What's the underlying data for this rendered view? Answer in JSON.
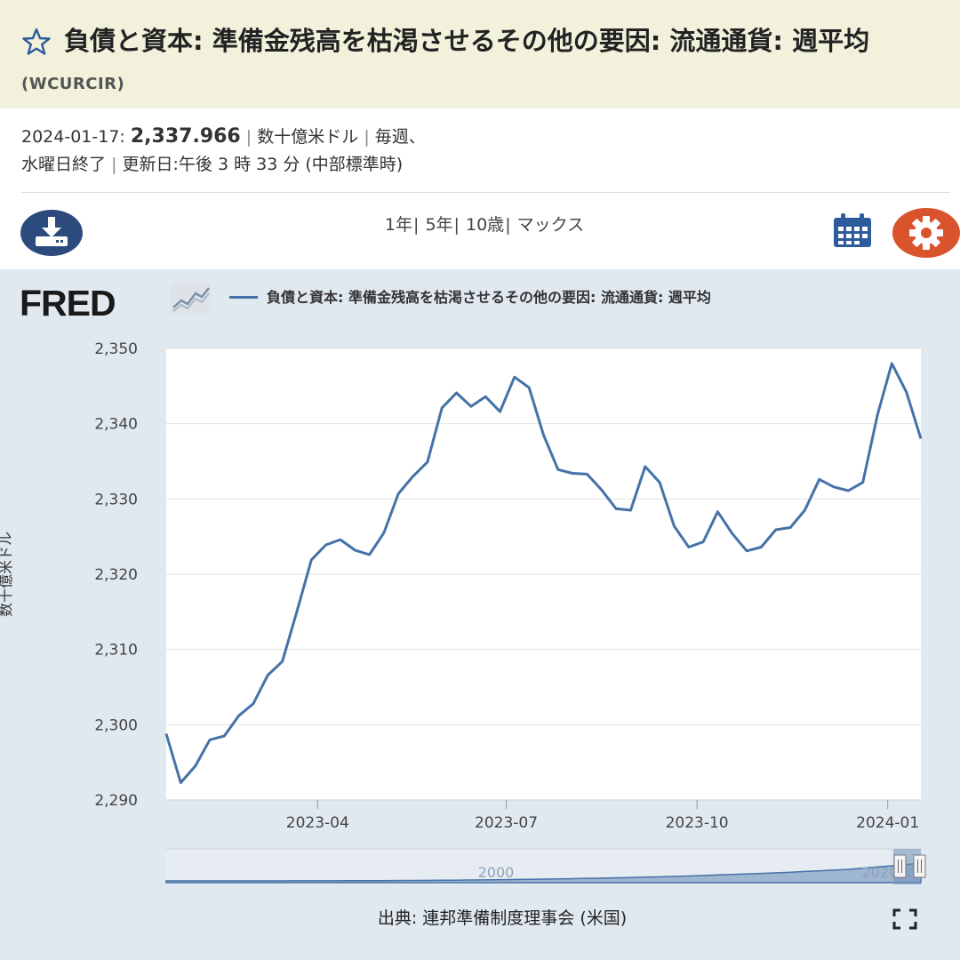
{
  "header": {
    "title": "負債と資本: 準備金残高を枯渇させるその他の要因: 流通通貨: 週平均",
    "series_id": "(WCURCIR)"
  },
  "meta": {
    "date": "2024-01-17:",
    "value": "2,337.966",
    "units": "数十億米ドル",
    "frequency": "毎週、",
    "period": "水曜日終了",
    "updated": "更新日:午後 3 時 33 分 (中部標準時)"
  },
  "toolbar": {
    "ranges": [
      "1年",
      "5年",
      "10歳",
      "マックス"
    ]
  },
  "icons": {
    "favorite": "star-icon",
    "download": "download-icon",
    "calendar": "calendar-icon",
    "settings": "gear-icon",
    "fullscreen": "fullscreen-icon"
  },
  "colors": {
    "title_bg": "#f1f1dc",
    "series": "#4572a7",
    "download_btn": "#2c4a7c",
    "settings_btn": "#d9532c",
    "chart_bg": "#e1e9f0"
  },
  "branding": {
    "logo": "FRED"
  },
  "chart_data": {
    "type": "line",
    "title": "",
    "xlabel": "",
    "ylabel": "数十億米ドル",
    "ylim": [
      2290,
      2350
    ],
    "yticks": [
      2290,
      2300,
      2310,
      2320,
      2330,
      2340,
      2350
    ],
    "ytick_labels": [
      "2,290",
      "2,300",
      "2,310",
      "2,320",
      "2,330",
      "2,340",
      "2,350"
    ],
    "xlim": [
      "2023-01-18",
      "2024-01-17"
    ],
    "xticks": [
      "2023-04-01",
      "2023-07-01",
      "2023-10-01",
      "2024-01-01"
    ],
    "xtick_labels": [
      "2023-04",
      "2023-07",
      "2023-10",
      "2024-01"
    ],
    "grid": true,
    "legend_position": "top-left",
    "series": [
      {
        "name": "負債と資本: 準備金残高を枯渇させるその他の要因: 流通通貨: 週平均",
        "x": [
          "2023-01-18",
          "2023-01-25",
          "2023-02-01",
          "2023-02-08",
          "2023-02-15",
          "2023-02-22",
          "2023-03-01",
          "2023-03-08",
          "2023-03-15",
          "2023-03-22",
          "2023-03-29",
          "2023-04-05",
          "2023-04-12",
          "2023-04-19",
          "2023-04-26",
          "2023-05-03",
          "2023-05-10",
          "2023-05-17",
          "2023-05-24",
          "2023-05-31",
          "2023-06-07",
          "2023-06-14",
          "2023-06-21",
          "2023-06-28",
          "2023-07-05",
          "2023-07-12",
          "2023-07-19",
          "2023-07-26",
          "2023-08-02",
          "2023-08-09",
          "2023-08-16",
          "2023-08-23",
          "2023-08-30",
          "2023-09-06",
          "2023-09-13",
          "2023-09-20",
          "2023-09-27",
          "2023-10-04",
          "2023-10-11",
          "2023-10-18",
          "2023-10-25",
          "2023-11-01",
          "2023-11-08",
          "2023-11-15",
          "2023-11-22",
          "2023-11-29",
          "2023-12-06",
          "2023-12-13",
          "2023-12-20",
          "2023-12-27",
          "2024-01-03",
          "2024-01-10",
          "2024-01-17"
        ],
        "values": [
          2298.8,
          2292.3,
          2294.5,
          2298.0,
          2298.5,
          2301.2,
          2302.8,
          2306.6,
          2308.4,
          2315.0,
          2321.9,
          2323.9,
          2324.6,
          2323.2,
          2322.6,
          2325.5,
          2330.7,
          2333.0,
          2334.9,
          2342.1,
          2344.1,
          2342.3,
          2343.6,
          2341.6,
          2346.2,
          2344.8,
          2338.5,
          2333.9,
          2333.4,
          2333.3,
          2331.2,
          2328.7,
          2328.5,
          2334.3,
          2332.2,
          2326.4,
          2323.6,
          2324.3,
          2328.3,
          2325.4,
          2323.1,
          2323.6,
          2325.9,
          2326.2,
          2328.5,
          2332.6,
          2331.6,
          2331.1,
          2332.2,
          2341.1,
          2348.0,
          2344.2,
          2338.0
        ]
      }
    ],
    "navigator": {
      "labels": [
        "2000",
        "2020"
      ]
    }
  },
  "footer": {
    "source": "出典: 連邦準備制度理事会 (米国)"
  }
}
